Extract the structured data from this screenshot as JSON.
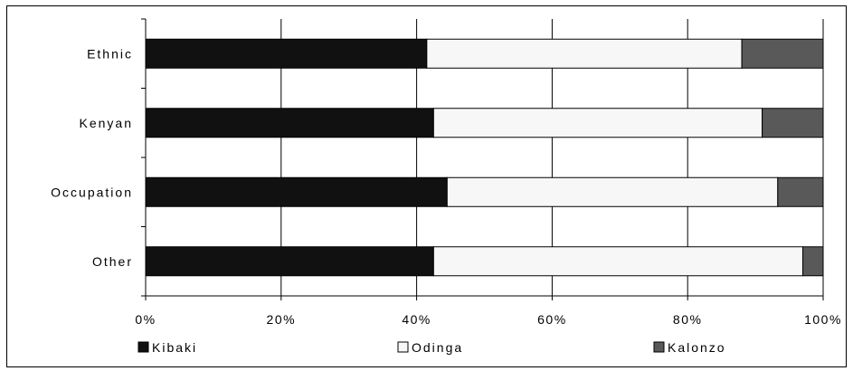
{
  "chart_data": {
    "type": "bar",
    "orientation": "horizontal",
    "stacked": true,
    "percent": true,
    "categories": [
      "Ethnic",
      "Kenyan",
      "Occupation",
      "Other"
    ],
    "series": [
      {
        "name": "Kibaki",
        "values": [
          41.5,
          42.5,
          44.5,
          42.5
        ],
        "color": "#111111"
      },
      {
        "name": "Odinga",
        "values": [
          46.5,
          48.5,
          48.8,
          54.5
        ],
        "color": "#f7f7f7"
      },
      {
        "name": "Kalonzo",
        "values": [
          12.0,
          9.0,
          6.7,
          3.0
        ],
        "color": "#595959"
      }
    ],
    "xlim": [
      0,
      100
    ],
    "xticks": [
      0,
      20,
      40,
      60,
      80,
      100
    ],
    "xtick_labels": [
      "0%",
      "20%",
      "40%",
      "60%",
      "80%",
      "100%"
    ],
    "grid": true,
    "legend_position": "bottom"
  }
}
